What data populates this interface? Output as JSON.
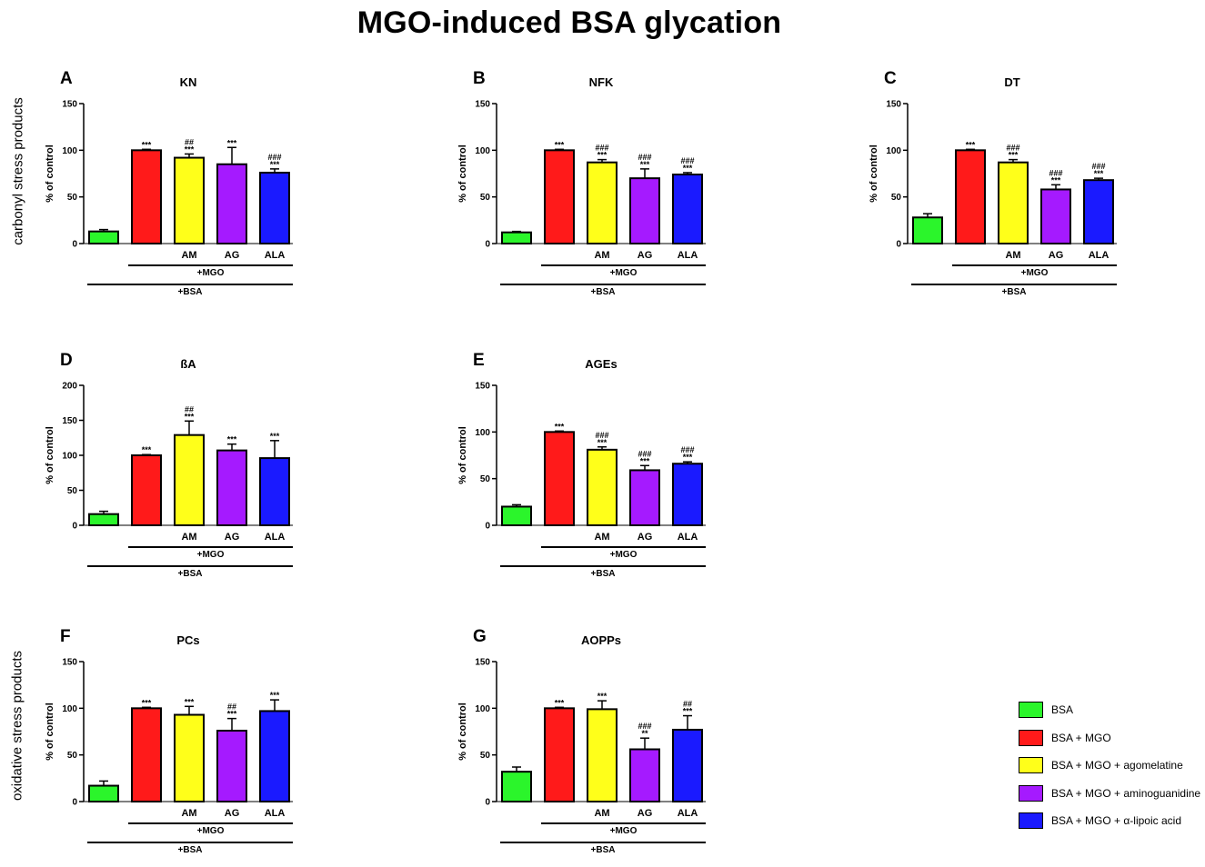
{
  "figure_title": "MGO-induced BSA glycation",
  "row_labels": {
    "carbonyl": "carbonyl stress products",
    "oxidative": "oxidative stress products"
  },
  "colors": {
    "bsa": "#2bf52b",
    "mgo": "#ff1a1a",
    "am": "#ffff1a",
    "ag": "#a51aff",
    "ala": "#1a1aff"
  },
  "legend": [
    {
      "label": "BSA",
      "color": "#2bf52b"
    },
    {
      "label": "BSA + MGO",
      "color": "#ff1a1a"
    },
    {
      "label": "BSA + MGO + agomelatine",
      "color": "#ffff1a"
    },
    {
      "label": "BSA + MGO + aminoguanidine",
      "color": "#a51aff"
    },
    {
      "label": "BSA + MGO + α-lipoic acid",
      "color": "#1a1aff"
    }
  ],
  "chart_data": [
    {
      "id": "A",
      "type": "bar",
      "title": "KN",
      "ylabel": "% of control",
      "ylim": [
        0,
        150
      ],
      "yticks": [
        0,
        50,
        100,
        150
      ],
      "categories": [
        "",
        "",
        "AM",
        "AG",
        "ALA"
      ],
      "group_labels": [
        "+MGO",
        "+BSA"
      ],
      "values": [
        13,
        100,
        92,
        85,
        76
      ],
      "errors": [
        2,
        1,
        4,
        18,
        4
      ],
      "sig_star": [
        "",
        "***",
        "***",
        "***",
        "***"
      ],
      "sig_hash": [
        "",
        "",
        "##",
        "",
        "###"
      ]
    },
    {
      "id": "B",
      "type": "bar",
      "title": "NFK",
      "ylabel": "% of control",
      "ylim": [
        0,
        150
      ],
      "yticks": [
        0,
        50,
        100,
        150
      ],
      "categories": [
        "",
        "",
        "AM",
        "AG",
        "ALA"
      ],
      "group_labels": [
        "+MGO",
        "+BSA"
      ],
      "values": [
        12,
        100,
        87,
        70,
        74
      ],
      "errors": [
        1,
        1,
        3,
        10,
        2
      ],
      "sig_star": [
        "",
        "***",
        "***",
        "***",
        "***"
      ],
      "sig_hash": [
        "",
        "",
        "###",
        "###",
        "###"
      ]
    },
    {
      "id": "C",
      "type": "bar",
      "title": "DT",
      "ylabel": "% of control",
      "ylim": [
        0,
        150
      ],
      "yticks": [
        0,
        50,
        100,
        150
      ],
      "categories": [
        "",
        "",
        "AM",
        "AG",
        "ALA"
      ],
      "group_labels": [
        "+MGO",
        "+BSA"
      ],
      "values": [
        28,
        100,
        87,
        58,
        68
      ],
      "errors": [
        4,
        1,
        3,
        5,
        2
      ],
      "sig_star": [
        "",
        "***",
        "***",
        "***",
        "***"
      ],
      "sig_hash": [
        "",
        "",
        "###",
        "###",
        "###"
      ]
    },
    {
      "id": "D",
      "type": "bar",
      "title": "ßA",
      "ylabel": "% of control",
      "ylim": [
        0,
        200
      ],
      "yticks": [
        0,
        50,
        100,
        150,
        200
      ],
      "categories": [
        "",
        "",
        "AM",
        "AG",
        "ALA"
      ],
      "group_labels": [
        "+MGO",
        "+BSA"
      ],
      "values": [
        16,
        100,
        129,
        107,
        96
      ],
      "errors": [
        4,
        1,
        20,
        9,
        25
      ],
      "sig_star": [
        "",
        "***",
        "***",
        "***",
        "***"
      ],
      "sig_hash": [
        "",
        "",
        "##",
        "",
        ""
      ]
    },
    {
      "id": "E",
      "type": "bar",
      "title": "AGEs",
      "ylabel": "% of control",
      "ylim": [
        0,
        150
      ],
      "yticks": [
        0,
        50,
        100,
        150
      ],
      "categories": [
        "",
        "",
        "AM",
        "AG",
        "ALA"
      ],
      "group_labels": [
        "+MGO",
        "+BSA"
      ],
      "values": [
        20,
        100,
        81,
        59,
        66
      ],
      "errors": [
        2,
        1,
        3,
        5,
        2
      ],
      "sig_star": [
        "",
        "***",
        "***",
        "***",
        "***"
      ],
      "sig_hash": [
        "",
        "",
        "###",
        "###",
        "###"
      ]
    },
    {
      "id": "F",
      "type": "bar",
      "title": "PCs",
      "ylabel": "% of control",
      "ylim": [
        0,
        150
      ],
      "yticks": [
        0,
        50,
        100,
        150
      ],
      "categories": [
        "",
        "",
        "AM",
        "AG",
        "ALA"
      ],
      "group_labels": [
        "+MGO",
        "+BSA"
      ],
      "values": [
        17,
        100,
        93,
        76,
        97
      ],
      "errors": [
        5,
        1,
        9,
        13,
        12
      ],
      "sig_star": [
        "",
        "***",
        "***",
        "***",
        "***"
      ],
      "sig_hash": [
        "",
        "",
        "",
        "##",
        ""
      ]
    },
    {
      "id": "G",
      "type": "bar",
      "title": "AOPPs",
      "ylabel": "% of control",
      "ylim": [
        0,
        150
      ],
      "yticks": [
        0,
        50,
        100,
        150
      ],
      "categories": [
        "",
        "",
        "AM",
        "AG",
        "ALA"
      ],
      "group_labels": [
        "+MGO",
        "+BSA"
      ],
      "values": [
        32,
        100,
        99,
        56,
        77
      ],
      "errors": [
        5,
        1,
        9,
        12,
        15
      ],
      "sig_star": [
        "",
        "***",
        "***",
        "**",
        "***"
      ],
      "sig_hash": [
        "",
        "",
        "",
        "###",
        "##"
      ]
    }
  ]
}
